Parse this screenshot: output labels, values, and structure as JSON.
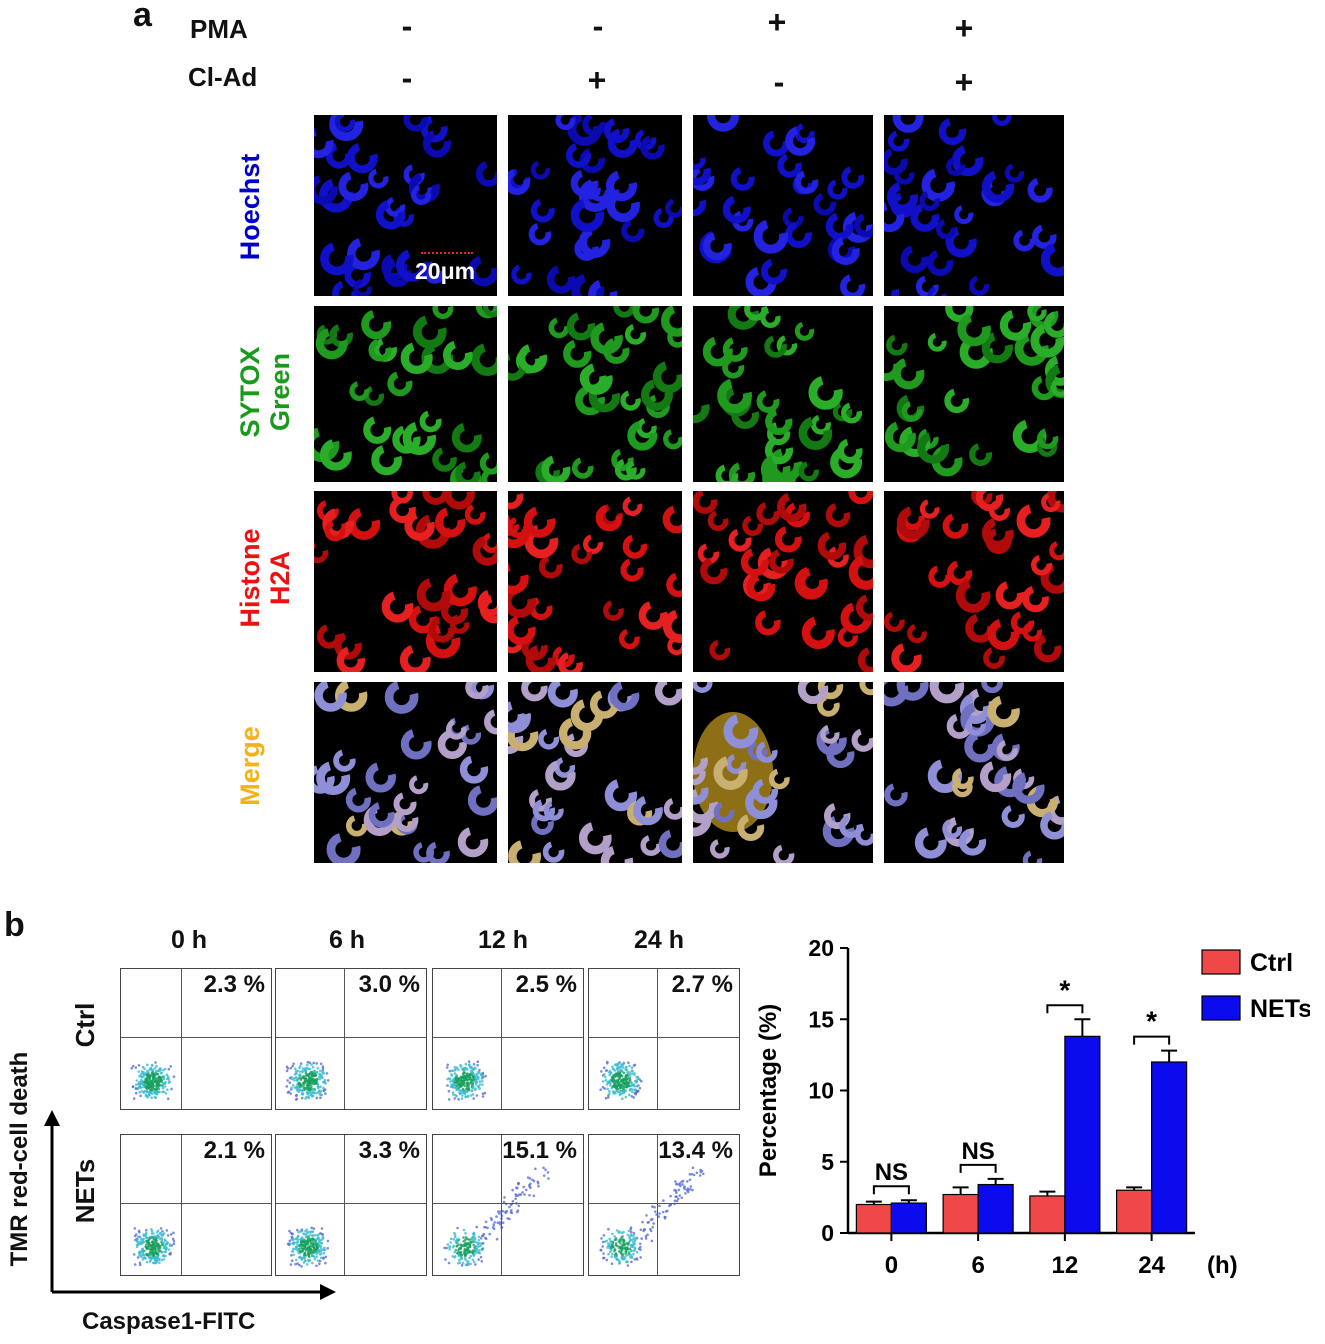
{
  "panel_a": {
    "letter": "a",
    "conditions": [
      {
        "name": "PMA",
        "signs": [
          "-",
          "-",
          "+",
          "+"
        ]
      },
      {
        "name": "Cl-Ad",
        "signs": [
          "-",
          "+",
          "-",
          "+"
        ]
      }
    ],
    "rows": [
      {
        "label_line1": "Hoechst",
        "label_line2": "",
        "color": "#0000cc"
      },
      {
        "label_line1": "SYTOX",
        "label_line2": "Green",
        "color": "#1a9a1a"
      },
      {
        "label_line1": "Histone",
        "label_line2": "H2A",
        "color": "#ee1111"
      },
      {
        "label_line1": "Merge",
        "label_line2": "",
        "color": "#f2b21a"
      }
    ],
    "scale_bar": "20μm"
  },
  "panel_b": {
    "letter": "b",
    "time_labels": [
      "0 h",
      "6 h",
      "12 h",
      "24 h"
    ],
    "flow_rows": [
      {
        "label": "Ctrl",
        "percents": [
          "2.3 %",
          "3.0 %",
          "2.5 %",
          "2.7 %"
        ]
      },
      {
        "label": "NETs",
        "percents": [
          "2.1 %",
          "3.3 %",
          "15.1 %",
          "13.4 %"
        ]
      }
    ],
    "y_axis_label": "TMR red-cell death",
    "x_axis_label": "Caspase1-FITC"
  },
  "chart_data": {
    "type": "bar",
    "categories": [
      "0",
      "6",
      "12",
      "24"
    ],
    "x_unit": "(h)",
    "ylabel": "Percentage (%)",
    "ylim": [
      0,
      20
    ],
    "yticks": [
      "0",
      "5",
      "10",
      "15",
      "20"
    ],
    "series": [
      {
        "name": "Ctrl",
        "color": "#f04848",
        "values": [
          2.0,
          2.7,
          2.6,
          3.0
        ],
        "errors": [
          0.2,
          0.5,
          0.3,
          0.2
        ]
      },
      {
        "name": "NETs",
        "color": "#0b0bee",
        "values": [
          2.1,
          3.4,
          13.8,
          12.0
        ],
        "errors": [
          0.2,
          0.4,
          1.2,
          0.8
        ]
      }
    ],
    "significance": [
      "NS",
      "NS",
      "*",
      "*"
    ]
  }
}
